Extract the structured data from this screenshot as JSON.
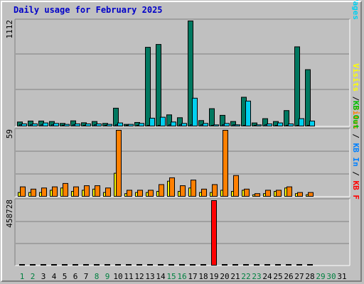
{
  "title": "Daily usage for February 2025",
  "colors": {
    "background": "#c0c0c0",
    "gridline": "#808080",
    "title": "#0000c8",
    "pages": "#00d0f0",
    "files": "#0060c0",
    "hits": "#007860",
    "visits": "#ffff00",
    "sites": "#ff8000",
    "kb_out": "#00c000",
    "kb_in": "#0080ff",
    "kb_f": "#ff0000",
    "day_weekend": "#008040",
    "day_weekday": "#000000"
  },
  "chart_data": [
    {
      "type": "bar",
      "categories": [
        "1",
        "2",
        "3",
        "4",
        "5",
        "6",
        "7",
        "8",
        "9",
        "10",
        "11",
        "12",
        "13",
        "14",
        "15",
        "16",
        "17",
        "18",
        "19",
        "20",
        "21",
        "22",
        "23",
        "24",
        "25",
        "26",
        "27",
        "28",
        "29",
        "30",
        "31"
      ],
      "weekend_days": [
        "1",
        "2",
        "8",
        "9",
        "15",
        "16",
        "22",
        "23",
        "29",
        "30"
      ],
      "ymax_label": "1112",
      "ylim": [
        0,
        1112
      ],
      "right_axis_labels": [
        {
          "text": "Hits",
          "color": "#007860"
        },
        {
          "text": " / ",
          "color": "#000000"
        },
        {
          "text": "Files",
          "color": "#0060c0"
        },
        {
          "text": " / ",
          "color": "#000000"
        },
        {
          "text": "Pages",
          "color": "#00d0f0"
        }
      ],
      "series": [
        {
          "name": "Hits",
          "color": "#007860",
          "values": [
            50,
            60,
            60,
            55,
            35,
            62,
            42,
            55,
            35,
            195,
            25,
            45,
            835,
            865,
            125,
            95,
            1112,
            65,
            190,
            120,
            55,
            310,
            40,
            85,
            55,
            170,
            840,
            600,
            0,
            0,
            0
          ]
        },
        {
          "name": "Files",
          "color": "#0060c0",
          "values": [
            20,
            20,
            20,
            20,
            15,
            20,
            15,
            20,
            15,
            20,
            15,
            15,
            10,
            10,
            20,
            20,
            20,
            20,
            10,
            20,
            20,
            15,
            10,
            20,
            15,
            15,
            15,
            10,
            0,
            0,
            0
          ]
        },
        {
          "name": "Pages",
          "color": "#00d0f0",
          "values": [
            30,
            30,
            40,
            35,
            25,
            30,
            30,
            30,
            25,
            40,
            25,
            35,
            90,
            100,
            50,
            35,
            300,
            35,
            20,
            35,
            20,
            270,
            20,
            30,
            40,
            30,
            85,
            60,
            0,
            0,
            0
          ]
        }
      ]
    },
    {
      "type": "bar",
      "categories": [
        "1",
        "2",
        "3",
        "4",
        "5",
        "6",
        "7",
        "8",
        "9",
        "10",
        "11",
        "12",
        "13",
        "14",
        "15",
        "16",
        "17",
        "18",
        "19",
        "20",
        "21",
        "22",
        "23",
        "24",
        "25",
        "26",
        "27",
        "28",
        "29",
        "30",
        "31"
      ],
      "ymax_label": "59",
      "ylim": [
        0,
        59
      ],
      "right_axis_labels": [
        {
          "text": "Visits",
          "color": "#ffff00"
        },
        {
          "text": " / ",
          "color": "#000000"
        },
        {
          "text": "Sites",
          "color": "#ff8000"
        }
      ],
      "series": [
        {
          "name": "Visits",
          "color": "#ffff00",
          "values": [
            4,
            4,
            4,
            6,
            8,
            5,
            6,
            7,
            4,
            21,
            3,
            4,
            4,
            5,
            14,
            5,
            8,
            4,
            4,
            6,
            5,
            6,
            2,
            3,
            5,
            8,
            3,
            2,
            0,
            0,
            0
          ]
        },
        {
          "name": "Sites",
          "color": "#ff8000",
          "values": [
            9,
            7,
            8,
            9,
            12,
            9,
            10,
            10,
            8,
            59,
            6,
            6,
            6,
            11,
            17,
            10,
            15,
            7,
            11,
            59,
            19,
            7,
            3,
            6,
            6,
            9,
            4,
            4,
            0,
            0,
            0
          ]
        }
      ]
    },
    {
      "type": "bar",
      "categories": [
        "1",
        "2",
        "3",
        "4",
        "5",
        "6",
        "7",
        "8",
        "9",
        "10",
        "11",
        "12",
        "13",
        "14",
        "15",
        "16",
        "17",
        "18",
        "19",
        "20",
        "21",
        "22",
        "23",
        "24",
        "25",
        "26",
        "27",
        "28",
        "29",
        "30",
        "31"
      ],
      "ymax_label": "458728",
      "ylim": [
        0,
        458728
      ],
      "right_axis_labels": [
        {
          "text": "KB Out",
          "color": "#00c000"
        },
        {
          "text": " / ",
          "color": "#000000"
        },
        {
          "text": "KB In",
          "color": "#0080ff"
        },
        {
          "text": " / ",
          "color": "#000000"
        },
        {
          "text": "KB F",
          "color": "#ff0000"
        }
      ],
      "series": [
        {
          "name": "KB F",
          "color": "#ff0000",
          "values": [
            5000,
            5000,
            5000,
            5000,
            5000,
            5000,
            5000,
            5000,
            5000,
            5000,
            5000,
            5000,
            5000,
            5000,
            5000,
            5000,
            5000,
            5000,
            458728,
            5000,
            5000,
            5000,
            5000,
            5000,
            5000,
            5000,
            5000,
            5000,
            0,
            0,
            0
          ]
        }
      ]
    }
  ]
}
